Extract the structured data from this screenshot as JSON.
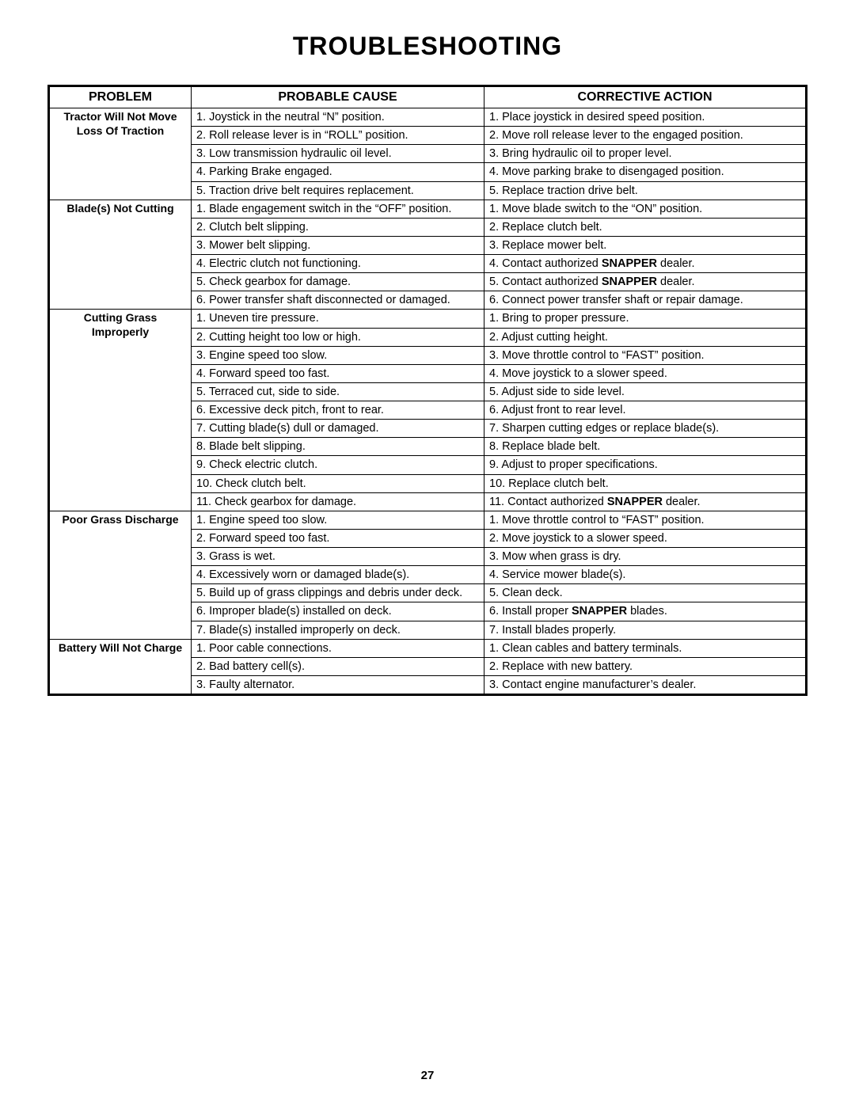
{
  "title": "TROUBLESHOOTING",
  "page_number": "27",
  "headers": {
    "problem": "PROBLEM",
    "cause": "PROBABLE CAUSE",
    "action": "CORRECTIVE ACTION"
  },
  "sections": [
    {
      "problem_lines": [
        "Tractor Will Not Move",
        "Loss Of Traction"
      ],
      "rows": [
        {
          "cause": "1. Joystick in the neutral “N” position.",
          "action": "1. Place joystick in desired speed position."
        },
        {
          "cause": "2. Roll release lever is in “ROLL” position.",
          "action": "2. Move roll release lever to the engaged position."
        },
        {
          "cause": "3. Low transmission hydraulic oil level.",
          "action": "3. Bring hydraulic oil to proper level."
        },
        {
          "cause": "4. Parking Brake engaged.",
          "action": "4. Move parking brake to disengaged position."
        },
        {
          "cause": "5. Traction drive belt requires replacement.",
          "action": "5. Replace traction drive belt."
        }
      ]
    },
    {
      "problem_lines": [
        "Blade(s) Not Cutting"
      ],
      "rows": [
        {
          "cause": "1. Blade engagement switch in the “OFF” position.",
          "action": "1. Move blade switch to the “ON” position."
        },
        {
          "cause": "2. Clutch belt slipping.",
          "action": "2. Replace clutch belt."
        },
        {
          "cause": "3. Mower belt slipping.",
          "action": "3. Replace mower belt."
        },
        {
          "cause": "4. Electric clutch not functioning.",
          "action_html": "4. Contact authorized <b>SNAPPER</b> dealer."
        },
        {
          "cause": "5. Check gearbox for damage.",
          "action_html": "5. Contact authorized <b>SNAPPER</b> dealer."
        },
        {
          "cause": "6. Power transfer shaft disconnected or damaged.",
          "action": "6. Connect power transfer shaft or repair damage."
        }
      ]
    },
    {
      "problem_lines": [
        "Cutting Grass",
        "Improperly"
      ],
      "rows": [
        {
          "cause": "1. Uneven tire pressure.",
          "action": "1. Bring to proper pressure."
        },
        {
          "cause": "2. Cutting height too low or high.",
          "action": "2. Adjust cutting height."
        },
        {
          "cause": "3. Engine speed too slow.",
          "action": "3. Move throttle control to “FAST” position."
        },
        {
          "cause": "4. Forward speed too fast.",
          "action": "4. Move joystick to a slower speed."
        },
        {
          "cause": "5. Terraced cut, side to side.",
          "action": "5. Adjust side to side level."
        },
        {
          "cause": "6. Excessive deck pitch, front to rear.",
          "action": "6. Adjust front to rear level."
        },
        {
          "cause": "7. Cutting blade(s) dull or damaged.",
          "action": "7. Sharpen cutting edges or replace blade(s)."
        },
        {
          "cause": "8. Blade belt slipping.",
          "action": "8. Replace blade belt."
        },
        {
          "cause": "9. Check electric clutch.",
          "action": "9. Adjust to proper specifications."
        },
        {
          "cause": "10. Check clutch belt.",
          "action": "10. Replace clutch belt."
        },
        {
          "cause": "11. Check gearbox for damage.",
          "action_html": "11. Contact authorized <b>SNAPPER</b> dealer."
        }
      ]
    },
    {
      "problem_lines": [
        "Poor Grass Discharge"
      ],
      "rows": [
        {
          "cause": "1. Engine speed too slow.",
          "action": "1. Move throttle control to “FAST” position."
        },
        {
          "cause": "2. Forward speed too fast.",
          "action": "2. Move joystick to a slower speed."
        },
        {
          "cause": "3. Grass is wet.",
          "action": "3. Mow when grass is dry."
        },
        {
          "cause": "4. Excessively worn or damaged blade(s).",
          "action": "4. Service mower blade(s)."
        },
        {
          "cause": "5. Build up of grass clippings and debris under deck.",
          "action": "5. Clean deck."
        },
        {
          "cause": "6. Improper blade(s) installed on deck.",
          "action_html": "6. Install proper <b>SNAPPER</b> blades."
        },
        {
          "cause": "7. Blade(s) installed improperly on deck.",
          "action": "7. Install blades properly."
        }
      ]
    },
    {
      "problem_lines": [
        "Battery Will Not Charge"
      ],
      "rows": [
        {
          "cause": "1. Poor cable connections.",
          "action": "1. Clean cables and battery terminals."
        },
        {
          "cause": "2. Bad battery cell(s).",
          "action": "2. Replace with new battery."
        },
        {
          "cause": "3. Faulty alternator.",
          "action": "3. Contact engine manufacturer’s dealer."
        }
      ]
    }
  ]
}
